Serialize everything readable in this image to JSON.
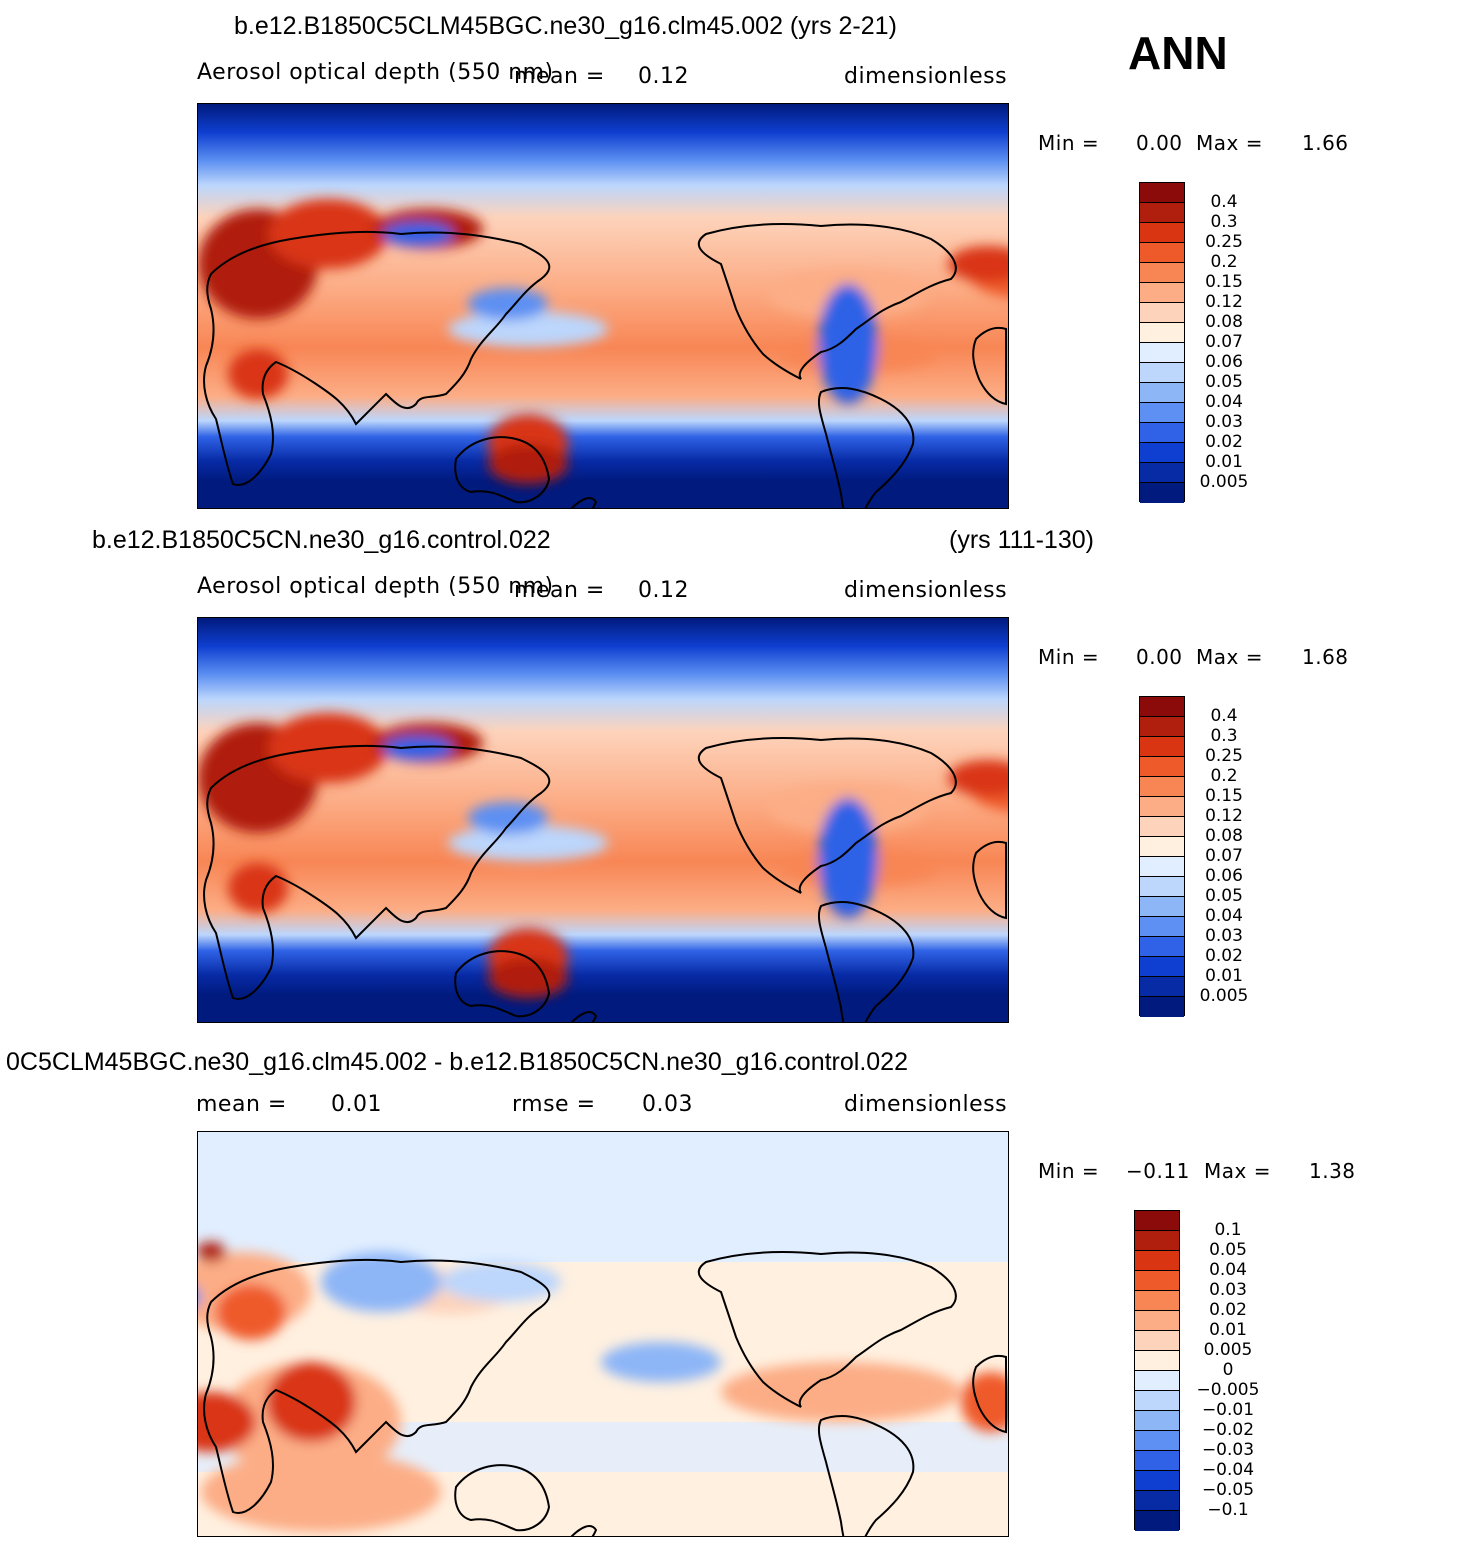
{
  "season": "ANN",
  "panels": [
    {
      "title": "b.e12.B1850C5CLM45BGC.ne30_g16.clm45.002 (yrs 2-21)",
      "title_right": "",
      "variable": "Aerosol optical depth (550 nm)",
      "stat1_label": "mean =",
      "stat1_value": "0.12",
      "stat2_label": "",
      "stat2_value": "",
      "units": "dimensionless",
      "min_label": "Min =",
      "min_value": "0.00",
      "max_label": "Max =",
      "max_value": "1.66",
      "colorbar_labels": [
        "0.4",
        "0.3",
        "0.25",
        "0.2",
        "0.15",
        "0.12",
        "0.08",
        "0.07",
        "0.06",
        "0.05",
        "0.04",
        "0.03",
        "0.02",
        "0.01",
        "0.005"
      ],
      "colorbar_colors": [
        "#8b0a0a",
        "#b01e0e",
        "#d93512",
        "#ef5a2a",
        "#f88655",
        "#fcad86",
        "#fdd3bb",
        "#fff0e0",
        "#e1eeff",
        "#bcd6fc",
        "#8db6f7",
        "#5d90f2",
        "#2f62e6",
        "#0f3fd0",
        "#072aa5",
        "#001a7d"
      ]
    },
    {
      "title": "b.e12.B1850C5CN.ne30_g16.control.022",
      "title_right": "(yrs 111-130)",
      "variable": "Aerosol optical depth (550 nm)",
      "stat1_label": "mean =",
      "stat1_value": "0.12",
      "stat2_label": "",
      "stat2_value": "",
      "units": "dimensionless",
      "min_label": "Min =",
      "min_value": "0.00",
      "max_label": "Max =",
      "max_value": "1.68",
      "colorbar_labels": [
        "0.4",
        "0.3",
        "0.25",
        "0.2",
        "0.15",
        "0.12",
        "0.08",
        "0.07",
        "0.06",
        "0.05",
        "0.04",
        "0.03",
        "0.02",
        "0.01",
        "0.005"
      ],
      "colorbar_colors": [
        "#8b0a0a",
        "#b01e0e",
        "#d93512",
        "#ef5a2a",
        "#f88655",
        "#fcad86",
        "#fdd3bb",
        "#fff0e0",
        "#e1eeff",
        "#bcd6fc",
        "#8db6f7",
        "#5d90f2",
        "#2f62e6",
        "#0f3fd0",
        "#072aa5",
        "#001a7d"
      ]
    },
    {
      "title": "0C5CLM45BGC.ne30_g16.clm45.002 - b.e12.B1850C5CN.ne30_g16.control.022",
      "title_right": "",
      "variable": "",
      "stat1_label": "mean =",
      "stat1_value": "0.01",
      "stat2_label": "rmse =",
      "stat2_value": "0.03",
      "units": "dimensionless",
      "min_label": "Min =",
      "min_value": "−0.11",
      "max_label": "Max =",
      "max_value": "1.38",
      "colorbar_labels": [
        "0.1",
        "0.05",
        "0.04",
        "0.03",
        "0.02",
        "0.01",
        "0.005",
        "0",
        "−0.005",
        "−0.01",
        "−0.02",
        "−0.03",
        "−0.04",
        "−0.05",
        "−0.1"
      ],
      "colorbar_colors": [
        "#8b0a0a",
        "#b01e0e",
        "#d93512",
        "#ef5a2a",
        "#f88655",
        "#fcad86",
        "#fdd3bb",
        "#fff0e0",
        "#e1eeff",
        "#bcd6fc",
        "#8db6f7",
        "#5d90f2",
        "#2f62e6",
        "#0f3fd0",
        "#072aa5",
        "#001a7d"
      ]
    }
  ]
}
